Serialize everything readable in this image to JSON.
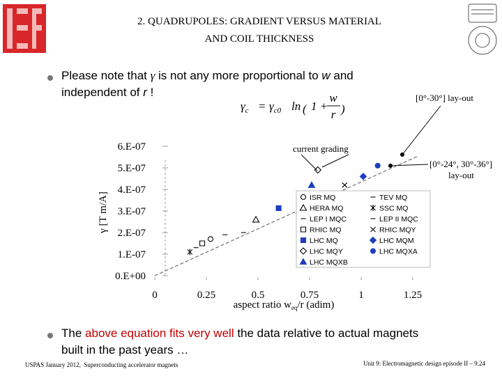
{
  "header": {
    "title_lines": [
      "2. QUADRUPOLES: GRADIENT VERSUS MATERIAL",
      "AND COIL THICKNESS"
    ]
  },
  "bullets": [
    {
      "lines": [
        [
          "Please note that ",
          "γ",
          " is not any more proportional to ",
          "w",
          " and"
        ],
        [
          "independent of ",
          "r",
          " !"
        ]
      ]
    },
    {
      "lines": [
        [
          "The ",
          "above equation fits very well",
          " the data relative to actual magnets"
        ],
        [
          "built in the past years …"
        ]
      ]
    }
  ],
  "equation": {
    "lhs": "γ",
    "lhs_sub": "c",
    "eq": "=",
    "coef": "γ",
    "coef_sub": "c0",
    "ln": "ln",
    "open": "(",
    "one": "1 +",
    "num": "w",
    "den": "r",
    "close": ")"
  },
  "chart_data": {
    "type": "scatter",
    "y_label": "γ [T m/A]",
    "x_label": [
      "aspect ratio w",
      "eq",
      "/r (adim)"
    ],
    "xlim": [
      0,
      1.25
    ],
    "xticks": [
      0,
      0.25,
      0.5,
      0.75,
      1,
      1.25
    ],
    "ylim": [
      0,
      6e-07
    ],
    "yticks": [
      {
        "value": 0,
        "label": "0.E+00"
      },
      {
        "value": 1e-07,
        "label": "1.E-07"
      },
      {
        "value": 2e-07,
        "label": "2.E-07"
      },
      {
        "value": 3e-07,
        "label": "3.E-07"
      },
      {
        "value": 4e-07,
        "label": "4.E-07"
      },
      {
        "value": 5e-07,
        "label": "5.E-07"
      },
      {
        "value": 6e-07,
        "label": "6.E-07"
      }
    ],
    "legend": "lower right",
    "series": [
      {
        "name": "ISR MQ",
        "marker": "circle-open",
        "color": "#000000",
        "x": [
          0.27
        ],
        "values": [
          1.7e-07
        ]
      },
      {
        "name": "TEV MQ",
        "marker": "dash",
        "color": "#000000",
        "x": [
          0.43
        ],
        "values": [
          2e-07
        ]
      },
      {
        "name": "HERA MQ",
        "marker": "triangle-open",
        "color": "#000000",
        "x": [
          0.49
        ],
        "values": [
          2.6e-07
        ]
      },
      {
        "name": "SSC MQ",
        "marker": "asterisk",
        "color": "#000000",
        "x": [
          0.17
        ],
        "values": [
          1.1e-07
        ]
      },
      {
        "name": "LEP I MQC",
        "marker": "dash",
        "color": "#000000",
        "x": [
          0.34
        ],
        "values": [
          1.9e-07
        ]
      },
      {
        "name": "LEP II MQC",
        "marker": "dash",
        "color": "#000000",
        "x": [
          0.2
        ],
        "values": [
          1.3e-07
        ]
      },
      {
        "name": "RHIC MQ",
        "marker": "square-open",
        "color": "#000000",
        "x": [
          0.23
        ],
        "values": [
          1.5e-07
        ]
      },
      {
        "name": "RHIC MQY",
        "marker": "cross",
        "color": "#000000",
        "x": [
          0.92
        ],
        "values": [
          4.2e-07
        ]
      },
      {
        "name": "LHC MQ",
        "marker": "square",
        "color": "#1f3fbf",
        "x": [
          0.6
        ],
        "values": [
          3.13e-07
        ]
      },
      {
        "name": "LHC MQM",
        "marker": "diamond",
        "color": "#1f3fbf",
        "x": [
          1.01
        ],
        "values": [
          4.6e-07
        ]
      },
      {
        "name": "LHC MQY",
        "marker": "diamond-open",
        "color": "#000000",
        "x": [
          0.79
        ],
        "values": [
          4.9e-07
        ]
      },
      {
        "name": "LHC MQXA",
        "marker": "circle",
        "color": "#1f3fbf",
        "x": [
          1.08
        ],
        "values": [
          5.1e-07
        ]
      },
      {
        "name": "LHC MQXB",
        "marker": "triangle",
        "color": "#1f3fbf",
        "x": [
          0.76
        ],
        "values": [
          4.2e-07
        ]
      }
    ],
    "annotations": [
      "current grading",
      "[0°-30°] lay-out",
      "[0°-24°, 30°-36°]",
      "lay-out"
    ]
  },
  "footer": {
    "left": "USPAS January 2012,  Superconducting accelerator magnets",
    "right": "Unit 9: Electromagnetic design episode II – 9.24"
  }
}
